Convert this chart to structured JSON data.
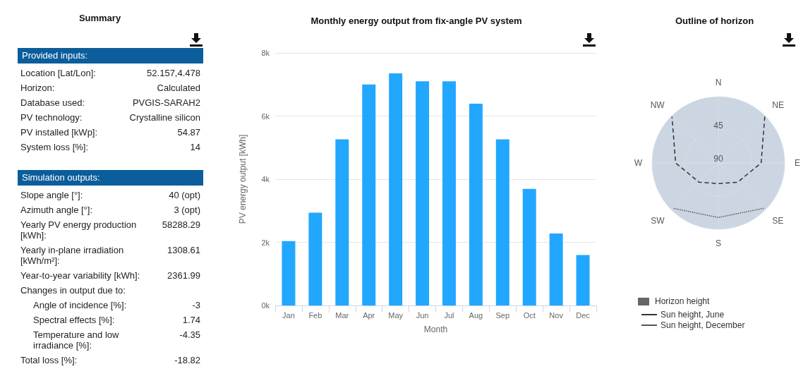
{
  "chart_data": [
    {
      "type": "other",
      "title": "Summary",
      "annotations": [
        "Provided inputs:",
        "Location [Lat/Lon]:",
        "52.157,4.478",
        "Horizon:",
        "Calculated",
        "Database used:",
        "PVGIS-SARAH2",
        "PV technology:",
        "Crystalline silicon",
        "PV installed [kWp]:",
        "54.87",
        "System loss [%]:",
        "14",
        "Simulation outputs:",
        "Slope angle [°]:",
        "40 (opt)",
        "Azimuth angle [°]:",
        "3 (opt)",
        "Yearly PV energy production [kWh]:",
        "58288.29",
        "Yearly in-plane irradiation [kWh/m²]:",
        "1308.61",
        "Year-to-year variability [kWh]:",
        "2361.99",
        "Changes in output due to:",
        "Angle of incidence [%]:",
        "-3",
        "Spectral effects [%]:",
        "1.74",
        "Temperature and low irradiance [%]:",
        "-4.35",
        "Total loss [%]:",
        "-18.82"
      ]
    },
    {
      "type": "bar",
      "title": "Monthly energy output from fix-angle PV system",
      "xlabel": "Month",
      "ylabel": "PV energy output [kWh]",
      "categories": [
        "Jan",
        "Feb",
        "Mar",
        "Apr",
        "May",
        "Jun",
        "Jul",
        "Aug",
        "Sep",
        "Oct",
        "Nov",
        "Dec"
      ],
      "values": [
        2040,
        2940,
        5260,
        7000,
        7350,
        7100,
        7100,
        6390,
        5260,
        3690,
        2280,
        1600
      ],
      "color": "#22a7fe",
      "ylim": [
        0,
        8000
      ],
      "yticks": [
        {
          "value": 0,
          "label": "0k"
        },
        {
          "value": 2000,
          "label": "2k"
        },
        {
          "value": 4000,
          "label": "4k"
        },
        {
          "value": 6000,
          "label": "6k"
        },
        {
          "value": 8000,
          "label": "8k"
        }
      ],
      "grid": "y",
      "legend": false
    },
    {
      "type": "radar",
      "title": "Outline of horizon",
      "categories": [
        "N",
        "NE",
        "E",
        "SE",
        "S",
        "SW",
        "W",
        "NW"
      ],
      "ylim": [
        90,
        0
      ],
      "yticks": [
        45,
        90
      ],
      "grid": true,
      "legend": "bottom left",
      "annotations": [
        "Horizon height"
      ],
      "series": [
        {
          "name": "Sun height, June",
          "color": "#333333",
          "line_style": "dashed",
          "values": [
            null,
            1,
            32,
            53,
            62,
            53,
            32,
            1
          ]
        },
        {
          "name": "Sun height, December",
          "color": "#555555",
          "line_style": "dotted",
          "values": [
            null,
            null,
            null,
            3,
            16,
            3,
            null,
            null
          ]
        }
      ]
    }
  ]
}
